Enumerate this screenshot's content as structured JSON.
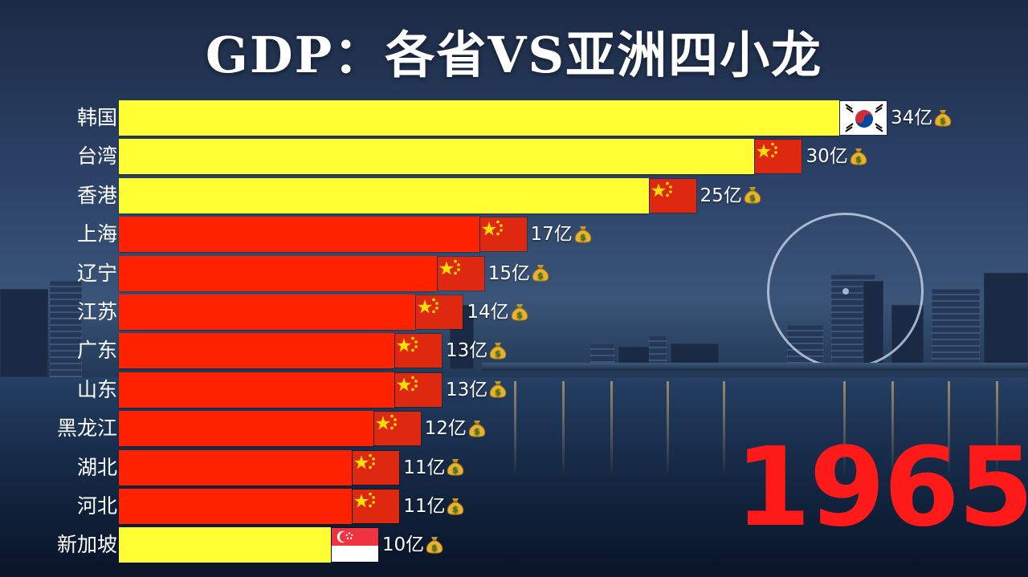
{
  "title": "GDP：各省VS亚洲四小龙",
  "year": "1965",
  "unit": "亿",
  "icons": {
    "value_suffix": "money-bag-icon"
  },
  "colors": {
    "four_dragons": "#ffff33",
    "china_province": "#ff2200",
    "year": "#ff1a1a"
  },
  "chart_data": {
    "type": "bar",
    "orientation": "horizontal",
    "title": "GDP：各省VS亚洲四小龙",
    "xlim": [
      0,
      34
    ],
    "categories": [
      "韩国",
      "台湾",
      "香港",
      "上海",
      "辽宁",
      "江苏",
      "广东",
      "山东",
      "黑龙江",
      "湖北",
      "河北",
      "新加坡"
    ],
    "values": [
      34,
      30,
      25,
      17,
      15,
      14,
      13,
      13,
      12,
      11,
      11,
      10
    ],
    "value_labels": [
      "34亿",
      "30亿",
      "25亿",
      "17亿",
      "15亿",
      "14亿",
      "13亿",
      "13亿",
      "12亿",
      "11亿",
      "11亿",
      "10亿"
    ],
    "flags": [
      "korea-flag",
      "china-flag",
      "china-flag",
      "china-flag",
      "china-flag",
      "china-flag",
      "china-flag",
      "china-flag",
      "china-flag",
      "china-flag",
      "china-flag",
      "singapore-flag"
    ],
    "bar_colors": [
      "#ffff33",
      "#ffff33",
      "#ffff33",
      "#ff2200",
      "#ff2200",
      "#ff2200",
      "#ff2200",
      "#ff2200",
      "#ff2200",
      "#ff2200",
      "#ff2200",
      "#ffff33"
    ]
  }
}
